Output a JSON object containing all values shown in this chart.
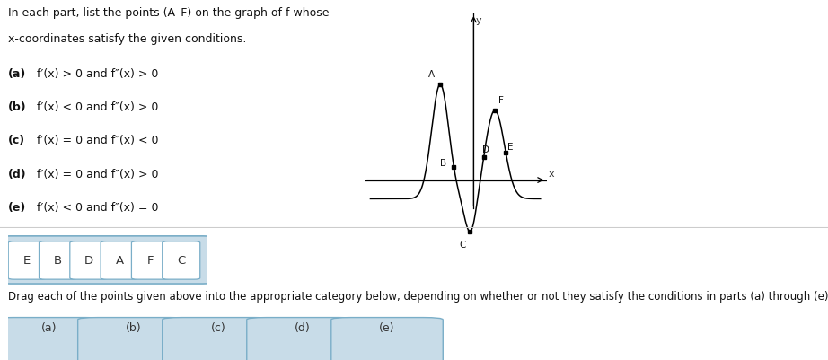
{
  "title_line1": "In each part, list the points (A–F) on the graph of f whose",
  "title_line2": "x-coordinates satisfy the given conditions.",
  "conditions": [
    [
      "(a)",
      "f′(x) > 0 and f″(x) > 0"
    ],
    [
      "(b)",
      "f′(x) < 0 and f″(x) > 0"
    ],
    [
      "(c)",
      "f′(x) = 0 and f″(x) < 0"
    ],
    [
      "(d)",
      "f′(x) = 0 and f″(x) > 0"
    ],
    [
      "(e)",
      "f′(x) < 0 and f″(x) = 0"
    ]
  ],
  "drag_labels": [
    "E",
    "B",
    "D",
    "A",
    "F",
    "C"
  ],
  "category_labels": [
    "(a)",
    "(b)",
    "(c)",
    "(d)",
    "(e)"
  ],
  "background_color": "#ffffff",
  "box_fill": "#c8dce8",
  "box_edge": "#7aaec8",
  "white_box_fill": "#ffffff",
  "drag_text": "Drag each of the points given above into the appropriate category below, depending on whether or not they satisfy the conditions in parts (a) through (e).",
  "graph_xlim": [
    -1.8,
    1.2
  ],
  "graph_ylim": [
    -0.55,
    1.6
  ],
  "curve_color": "#000000",
  "point_color": "#000000",
  "axis_color": "#000000"
}
